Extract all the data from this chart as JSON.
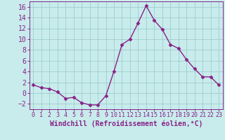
{
  "x": [
    0,
    1,
    2,
    3,
    4,
    5,
    6,
    7,
    8,
    9,
    10,
    11,
    12,
    13,
    14,
    15,
    16,
    17,
    18,
    19,
    20,
    21,
    22,
    23
  ],
  "y": [
    1.5,
    1.0,
    0.8,
    0.2,
    -1.0,
    -0.8,
    -1.8,
    -2.2,
    -2.2,
    -0.5,
    4.0,
    9.0,
    10.0,
    13.0,
    16.2,
    13.5,
    11.8,
    9.0,
    8.3,
    6.2,
    4.5,
    3.0,
    3.0,
    1.5
  ],
  "line_color": "#882288",
  "marker": "D",
  "markersize": 2.5,
  "linewidth": 1.0,
  "background_color": "#c8ecec",
  "grid_color": "#a0cccc",
  "xlabel": "Windchill (Refroidissement éolien,°C)",
  "xlabel_fontsize": 7,
  "xlim": [
    -0.5,
    23.5
  ],
  "ylim": [
    -3,
    17
  ],
  "yticks": [
    -2,
    0,
    2,
    4,
    6,
    8,
    10,
    12,
    14,
    16
  ],
  "xticks": [
    0,
    1,
    2,
    3,
    4,
    5,
    6,
    7,
    8,
    9,
    10,
    11,
    12,
    13,
    14,
    15,
    16,
    17,
    18,
    19,
    20,
    21,
    22,
    23
  ],
  "tick_color": "#882288",
  "tick_fontsize": 6,
  "spine_color": "#882288"
}
